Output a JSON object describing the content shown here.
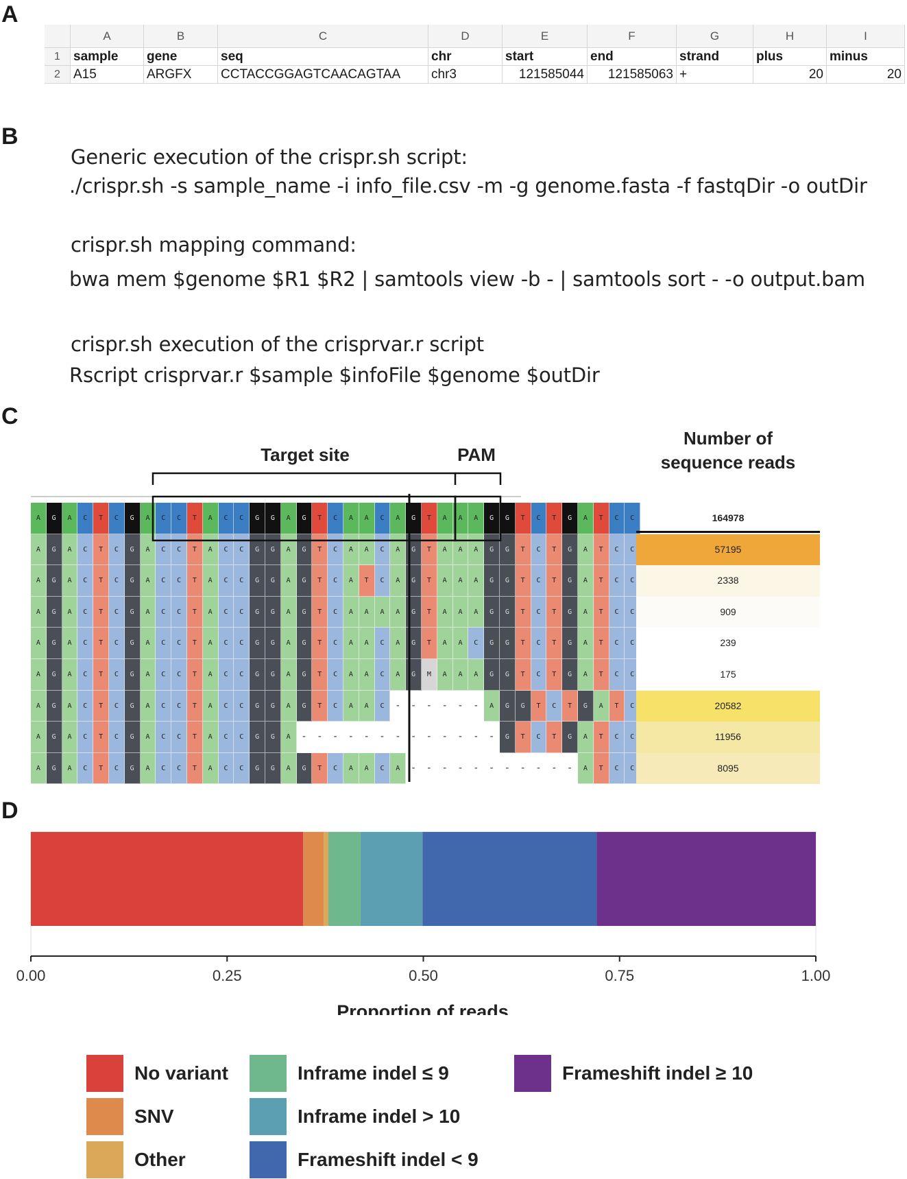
{
  "panels": {
    "a": "A",
    "b": "B",
    "c": "C",
    "d": "D"
  },
  "spreadsheet": {
    "columns": [
      "A",
      "B",
      "C",
      "D",
      "E",
      "F",
      "G",
      "H",
      "I"
    ],
    "row_numbers": [
      "1",
      "2"
    ],
    "header_row": [
      "sample",
      "gene",
      "seq",
      "chr",
      "start",
      "end",
      "strand",
      "plus",
      "minus"
    ],
    "data_row": [
      "A15",
      "ARGFX",
      "CCTACCGGAGTCAACAGTAA",
      "chr3",
      "121585044",
      "121585063",
      "+",
      "20",
      "20"
    ]
  },
  "commands": {
    "line1": "Generic execution of the crispr.sh script:",
    "line2": "./crispr.sh -s sample_name -i info_file.csv -m -g genome.fasta -f fastqDir -o outDir",
    "line3": "crispr.sh mapping command:",
    "line4": "bwa mem $genome $R1 $R2 | samtools view -b - | samtools sort - -o output.bam",
    "line5": "crispr.sh execution of the crisprvar.r script",
    "line6": "Rscript crisprvar.r $sample $infoFile $genome $outDir"
  },
  "alignment": {
    "target_label": "Target site",
    "pam_label": "PAM",
    "counts_title_1": "Number of",
    "counts_title_2": "sequence reads",
    "reference": "AGACTCGACCTACCGGAGTCAACAGTAAAGGTCTGATCC",
    "reads": [
      "AGACTCGACCTACCGGAGTCAACAGTAAAGGTCTGATCC",
      "AGACTCGACCTACCGGAGTCATCAGTAAAGGTCTGATCC",
      "AGACTCGACCTACCGGAGTCAAAAGTAAAGGTCTGATCC",
      "AGACTCGACCTACCGGAGTCAACAGTAACGGTCTGATCC",
      "AGACTCGACCTACCGGAGTCAACAGMAAAGGTCTGATCC",
      "AGACTCGACCTACCGGAGTCAAC------AGGTCTGATCC",
      "AGACTCGACCTACCGGA-------------GTCTGATCC",
      "AGACTCGACCTACCGGAGTCAACA-----------ATCC"
    ],
    "reference_count": "164978",
    "read_counts": [
      "57195",
      "2338",
      "909",
      "239",
      "175",
      "20582",
      "11956",
      "8095"
    ],
    "count_colors": [
      "#f0a73a",
      "#fcf6e6",
      "#fcfbf7",
      "#ffffff",
      "#ffffff",
      "#f7e168",
      "#f5e7a4",
      "#f6ebb8"
    ],
    "base_colors": {
      "A": "#5cb85c",
      "C": "#3b7ec4",
      "G": "#111111",
      "T": "#e04a3a",
      "M": "#bbbbbb",
      "-": "#ffffff"
    },
    "read_base_colors": {
      "A": "#9fd39a",
      "C": "#9bb7de",
      "G": "#4a4e57",
      "T": "#ea8a72",
      "M": "#d6d6d6",
      "-": "#ffffff"
    }
  },
  "chart_data": {
    "type": "bar",
    "orientation": "horizontal-stacked",
    "xlabel": "Proportion of reads",
    "xlim": [
      0,
      1
    ],
    "ticks": [
      "0.00",
      "0.25",
      "0.50",
      "0.75",
      "1.00"
    ],
    "series": [
      {
        "name": "No variant",
        "value": 0.347,
        "color": "#d8423a"
      },
      {
        "name": "SNV",
        "value": 0.026,
        "color": "#de8a4c"
      },
      {
        "name": "Other",
        "value": 0.006,
        "color": "#dba758"
      },
      {
        "name": "Inframe indel ≤ 9",
        "value": 0.041,
        "color": "#6fb88e"
      },
      {
        "name": "Inframe indel > 10",
        "value": 0.079,
        "color": "#5c9fb3"
      },
      {
        "name": "Frameshift indel < 9",
        "value": 0.222,
        "color": "#4167ac"
      },
      {
        "name": "Frameshift indel ≥ 10",
        "value": 0.279,
        "color": "#6d308b"
      }
    ]
  }
}
